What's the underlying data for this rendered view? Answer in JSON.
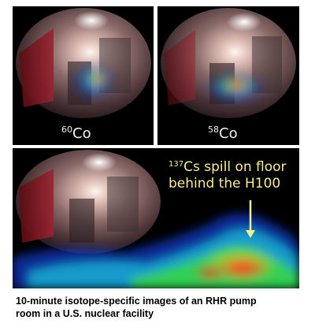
{
  "panels": [
    {
      "isotope_mass": "60",
      "isotope_symbol": "Co"
    },
    {
      "isotope_mass": "58",
      "isotope_symbol": "Co"
    }
  ],
  "annotation": {
    "isotope_mass": "137",
    "line1_rest": "Cs spill on floor",
    "line2": "behind the H100"
  },
  "caption": {
    "line1": "10-minute isotope-specific images of an RHR pump",
    "line2": "room in a U.S. nuclear facility"
  },
  "colors": {
    "label_text": "#f2f2f2",
    "annotation_text": "#f4ee8c",
    "arrow": "#f4ee8c",
    "panel_background": "#000000"
  }
}
